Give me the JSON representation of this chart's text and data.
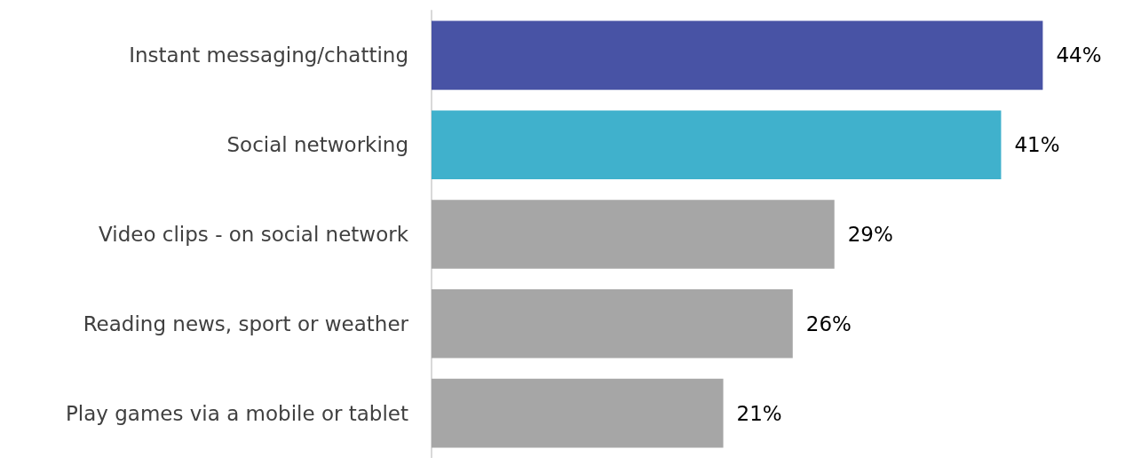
{
  "chart_data": {
    "type": "bar",
    "orientation": "horizontal",
    "categories": [
      "Instant messaging/chatting",
      "Social networking",
      "Video clips - on social network",
      "Reading news, sport or weather",
      "Play games via a mobile or tablet"
    ],
    "values": [
      44,
      41,
      29,
      26,
      21
    ],
    "colors": [
      "#4853a5",
      "#40b1cc",
      "#a6a6a6",
      "#a6a6a6",
      "#a6a6a6"
    ],
    "value_labels": [
      "44%",
      "41%",
      "29%",
      "26%",
      "21%"
    ]
  }
}
